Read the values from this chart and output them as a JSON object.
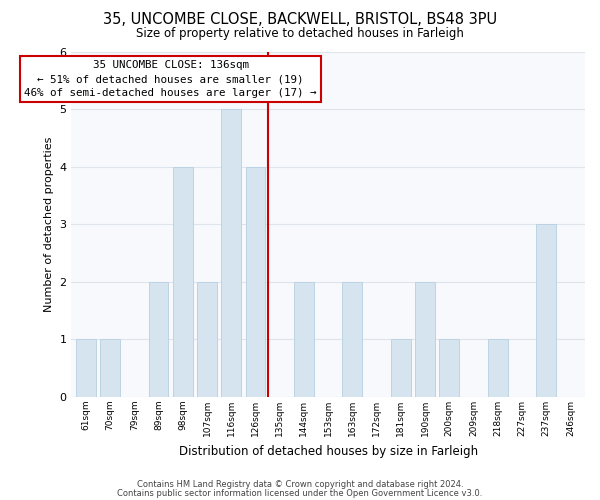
{
  "title1": "35, UNCOMBE CLOSE, BACKWELL, BRISTOL, BS48 3PU",
  "title2": "Size of property relative to detached houses in Farleigh",
  "xlabel": "Distribution of detached houses by size in Farleigh",
  "ylabel": "Number of detached properties",
  "bin_labels": [
    "61sqm",
    "70sqm",
    "79sqm",
    "89sqm",
    "98sqm",
    "107sqm",
    "116sqm",
    "126sqm",
    "135sqm",
    "144sqm",
    "153sqm",
    "163sqm",
    "172sqm",
    "181sqm",
    "190sqm",
    "200sqm",
    "209sqm",
    "218sqm",
    "227sqm",
    "237sqm",
    "246sqm"
  ],
  "bar_heights": [
    1,
    1,
    0,
    2,
    4,
    2,
    5,
    4,
    0,
    2,
    0,
    2,
    0,
    1,
    2,
    1,
    0,
    1,
    0,
    3,
    0
  ],
  "bar_color": "#d6e4f0",
  "bar_edge_color": "#b8cfe0",
  "reference_line_label": "35 UNCOMBE CLOSE: 136sqm",
  "annotation_line1": "← 51% of detached houses are smaller (19)",
  "annotation_line2": "46% of semi-detached houses are larger (17) →",
  "footer1": "Contains HM Land Registry data © Crown copyright and database right 2024.",
  "footer2": "Contains public sector information licensed under the Open Government Licence v3.0.",
  "ylim": [
    0,
    6
  ],
  "bg_color": "#ffffff",
  "plot_bg_color": "#f7f9fc",
  "grid_color": "#dde4ec",
  "ref_line_color": "#cc0000",
  "annotation_box_color": "#ffffff"
}
